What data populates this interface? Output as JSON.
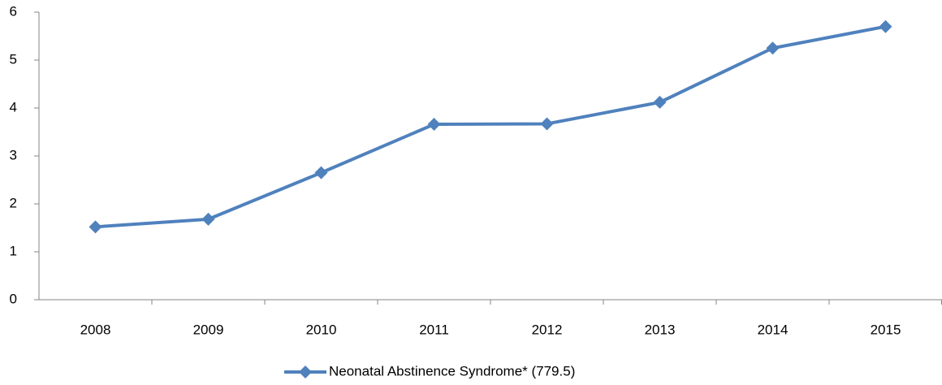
{
  "chart_data": {
    "type": "line",
    "categories": [
      "2008",
      "2009",
      "2010",
      "2011",
      "2012",
      "2013",
      "2014",
      "2015"
    ],
    "series": [
      {
        "name": "Neonatal Abstinence Syndrome* (779.5)",
        "color": "#4f81bd",
        "values": [
          1.52,
          1.68,
          2.65,
          3.66,
          3.67,
          4.12,
          5.25,
          5.7
        ]
      }
    ],
    "ylim": [
      0,
      6
    ],
    "yticks": [
      0,
      1,
      2,
      3,
      4,
      5,
      6
    ],
    "grid": false,
    "legend": "bottom"
  }
}
